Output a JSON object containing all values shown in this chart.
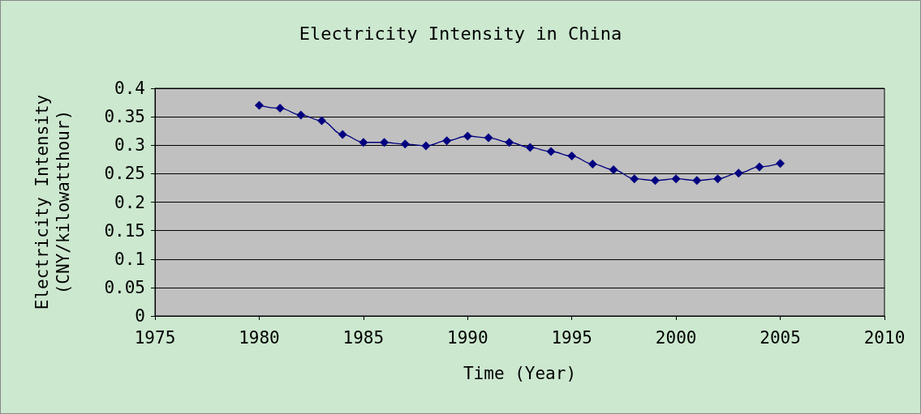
{
  "chart_data": {
    "type": "line",
    "title": "Electricity Intensity in China",
    "xlabel": "Time (Year)",
    "ylabel": "Electricity Intensity\n(CNY/kilowatthour)",
    "x": [
      1980,
      1981,
      1982,
      1983,
      1984,
      1985,
      1986,
      1987,
      1988,
      1989,
      1990,
      1991,
      1992,
      1993,
      1994,
      1995,
      1996,
      1997,
      1998,
      1999,
      2000,
      2001,
      2002,
      2003,
      2004,
      2005
    ],
    "series": [
      {
        "color": "#000080",
        "values": [
          0.37,
          0.365,
          0.353,
          0.343,
          0.319,
          0.305,
          0.305,
          0.302,
          0.299,
          0.308,
          0.316,
          0.313,
          0.305,
          0.296,
          0.289,
          0.281,
          0.267,
          0.257,
          0.241,
          0.238,
          0.241,
          0.238,
          0.241,
          0.251,
          0.262,
          0.268
        ]
      }
    ],
    "xlim": [
      1975,
      2010
    ],
    "xticks": [
      1975,
      1980,
      1985,
      1990,
      1995,
      2000,
      2005,
      2010
    ],
    "ylim": [
      0,
      0.4
    ],
    "yticks": [
      0,
      0.05,
      0.1,
      0.15,
      0.2,
      0.25,
      0.3,
      0.35,
      0.4
    ],
    "grid": "y",
    "marker": "diamond",
    "line_style": "solid"
  }
}
